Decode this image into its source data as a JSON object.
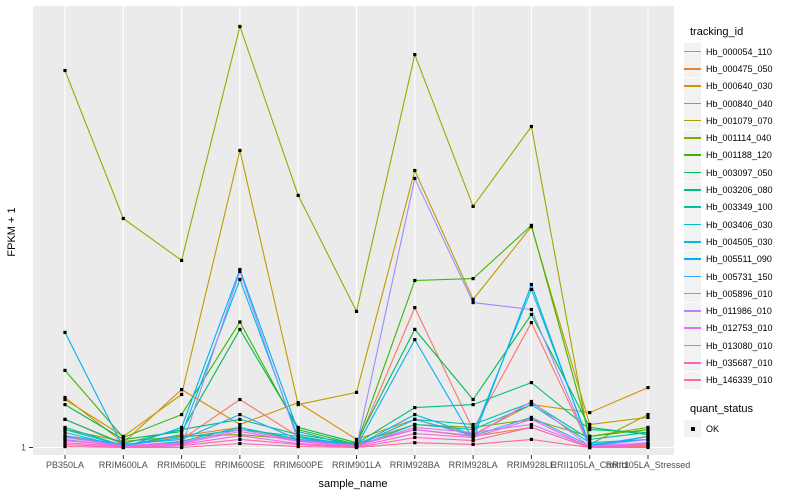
{
  "figure": {
    "background": "#FFFFFF",
    "panel_background": "#EBEBEB",
    "gridline_color": "#FFFFFF",
    "tick_label_color": "#4D4D4D",
    "point_color": "#000000"
  },
  "axes": {
    "x_title": "sample_name",
    "y_title": "FPKM + 1",
    "y_tick_label": "1"
  },
  "legend": {
    "tracking_title": "tracking_id",
    "quant_title": "quant_status",
    "quant_items": [
      {
        "label": "OK",
        "marker": "filled-black-square"
      }
    ]
  },
  "chart_data": {
    "type": "line",
    "title": "",
    "xlabel": "sample_name",
    "ylabel": "FPKM + 1",
    "x_categories": [
      "PB350LA",
      "RRIM600LA",
      "RRIM600LE",
      "RRIM600SE",
      "RRIM600PE",
      "RRIM901LA",
      "RRIM928BA",
      "RRIM928LA",
      "RRIM928LE",
      "RRII105LA_Control",
      "RRII105LA_Stressed"
    ],
    "y_axis": {
      "scale": "log10",
      "tick_labels": [
        "1"
      ],
      "range": [
        1,
        10000
      ],
      "grid": "single-line-at-1"
    },
    "legend_position": "right",
    "point_marker": {
      "shape": "filled-square",
      "color": "#000000",
      "meaning": "quant_status OK"
    },
    "series": [
      {
        "name": "Hb_000054_110",
        "color": "#F8766D",
        "values": [
          1.83,
          1.07,
          1.19,
          2.81,
          1.27,
          1.04,
          20.3,
          1.47,
          14.7,
          1.02,
          1.04
        ]
      },
      {
        "name": "Hb_000475_050",
        "color": "#EA8331",
        "values": [
          1.27,
          1.04,
          1.29,
          1.54,
          1.16,
          1.07,
          1.47,
          1.27,
          1.54,
          1.0,
          1.02
        ]
      },
      {
        "name": "Hb_000640_030",
        "color": "#D89000",
        "values": [
          2.93,
          1.11,
          3.48,
          1.64,
          2.63,
          1.19,
          1.83,
          1.32,
          2.52,
          2.12,
          3.63
        ]
      },
      {
        "name": "Hb_000840_040",
        "color": "#C09B00",
        "values": [
          2.81,
          1.27,
          3.13,
          597,
          2.52,
          3.27,
          388,
          24.2,
          116,
          1.64,
          1.91
        ]
      },
      {
        "name": "Hb_001079_070",
        "color": "#A3A500",
        "values": [
          3340,
          138,
          56,
          8600,
          227,
          18.7,
          4700,
          179,
          1000,
          1.07,
          2.03
        ]
      },
      {
        "name": "Hb_001114_040",
        "color": "#7CAE00",
        "values": [
          1.47,
          1.14,
          1.27,
          1.32,
          1.19,
          1.09,
          1.64,
          1.54,
          1.83,
          1.27,
          1.54
        ]
      },
      {
        "name": "Hb_001188_120",
        "color": "#39B600",
        "values": [
          5.25,
          1.24,
          2.03,
          14.9,
          1.47,
          1.07,
          36.4,
          37.9,
          119,
          1.27,
          1.47
        ]
      },
      {
        "name": "Hb_003097_050",
        "color": "#00BB4E",
        "values": [
          2.52,
          1.19,
          1.41,
          12.7,
          1.54,
          1.11,
          12.7,
          2.81,
          17.5,
          1.54,
          1.32
        ]
      },
      {
        "name": "Hb_003206_080",
        "color": "#00BF7D",
        "values": [
          1.83,
          1.09,
          1.47,
          1.83,
          1.32,
          1.09,
          2.36,
          2.52,
          4.04,
          1.47,
          1.38
        ]
      },
      {
        "name": "Hb_003349_100",
        "color": "#00C1A3",
        "values": [
          1.54,
          1.04,
          1.24,
          1.47,
          1.27,
          1.04,
          1.83,
          1.64,
          2.63,
          1.19,
          1.38
        ]
      },
      {
        "name": "Hb_003406_030",
        "color": "#00BFC4",
        "values": [
          1.38,
          1.02,
          1.14,
          1.54,
          1.19,
          1.02,
          1.64,
          1.47,
          2.52,
          1.11,
          1.19
        ]
      },
      {
        "name": "Hb_004505_030",
        "color": "#00BAE0",
        "values": [
          1.47,
          1.04,
          1.32,
          37.2,
          1.24,
          1.04,
          2.03,
          1.32,
          30.0,
          1.07,
          1.19
        ]
      },
      {
        "name": "Hb_005511_090",
        "color": "#00B0F6",
        "values": [
          11.9,
          1.0,
          1.54,
          46.1,
          1.41,
          1.02,
          10.2,
          1.19,
          33.4,
          1.02,
          1.27
        ]
      },
      {
        "name": "Hb_005731_150",
        "color": "#35A2FF",
        "values": [
          1.29,
          1.07,
          1.19,
          2.03,
          1.19,
          1.04,
          1.83,
          1.29,
          1.91,
          1.04,
          1.27
        ]
      },
      {
        "name": "Hb_005896_010",
        "color": "#9590FF",
        "values": [
          1.19,
          1.02,
          1.0,
          44.2,
          1.14,
          1.02,
          327,
          22.6,
          19.5,
          1.02,
          1.19
        ]
      },
      {
        "name": "Hb_011986_010",
        "color": "#C77CFF",
        "values": [
          1.24,
          1.04,
          1.11,
          1.47,
          1.16,
          1.04,
          1.54,
          1.38,
          1.64,
          1.02,
          1.11
        ]
      },
      {
        "name": "Hb_012753_010",
        "color": "#E76BF3",
        "values": [
          1.16,
          1.04,
          1.09,
          1.41,
          1.14,
          1.04,
          1.47,
          1.29,
          2.69,
          1.02,
          1.09
        ]
      },
      {
        "name": "Hb_013080_010",
        "color": "#FA62DB",
        "values": [
          1.11,
          1.02,
          1.07,
          1.29,
          1.09,
          1.02,
          1.35,
          1.24,
          1.83,
          1.0,
          1.07
        ]
      },
      {
        "name": "Hb_035687_010",
        "color": "#FF62BC",
        "values": [
          1.07,
          1.0,
          1.04,
          1.19,
          1.07,
          1.0,
          1.24,
          1.16,
          1.54,
          1.0,
          1.04
        ]
      },
      {
        "name": "Hb_146339_010",
        "color": "#FF6A98",
        "values": [
          1.02,
          1.0,
          1.0,
          1.09,
          1.02,
          1.0,
          1.11,
          1.07,
          1.19,
          1.0,
          1.0
        ]
      }
    ]
  }
}
